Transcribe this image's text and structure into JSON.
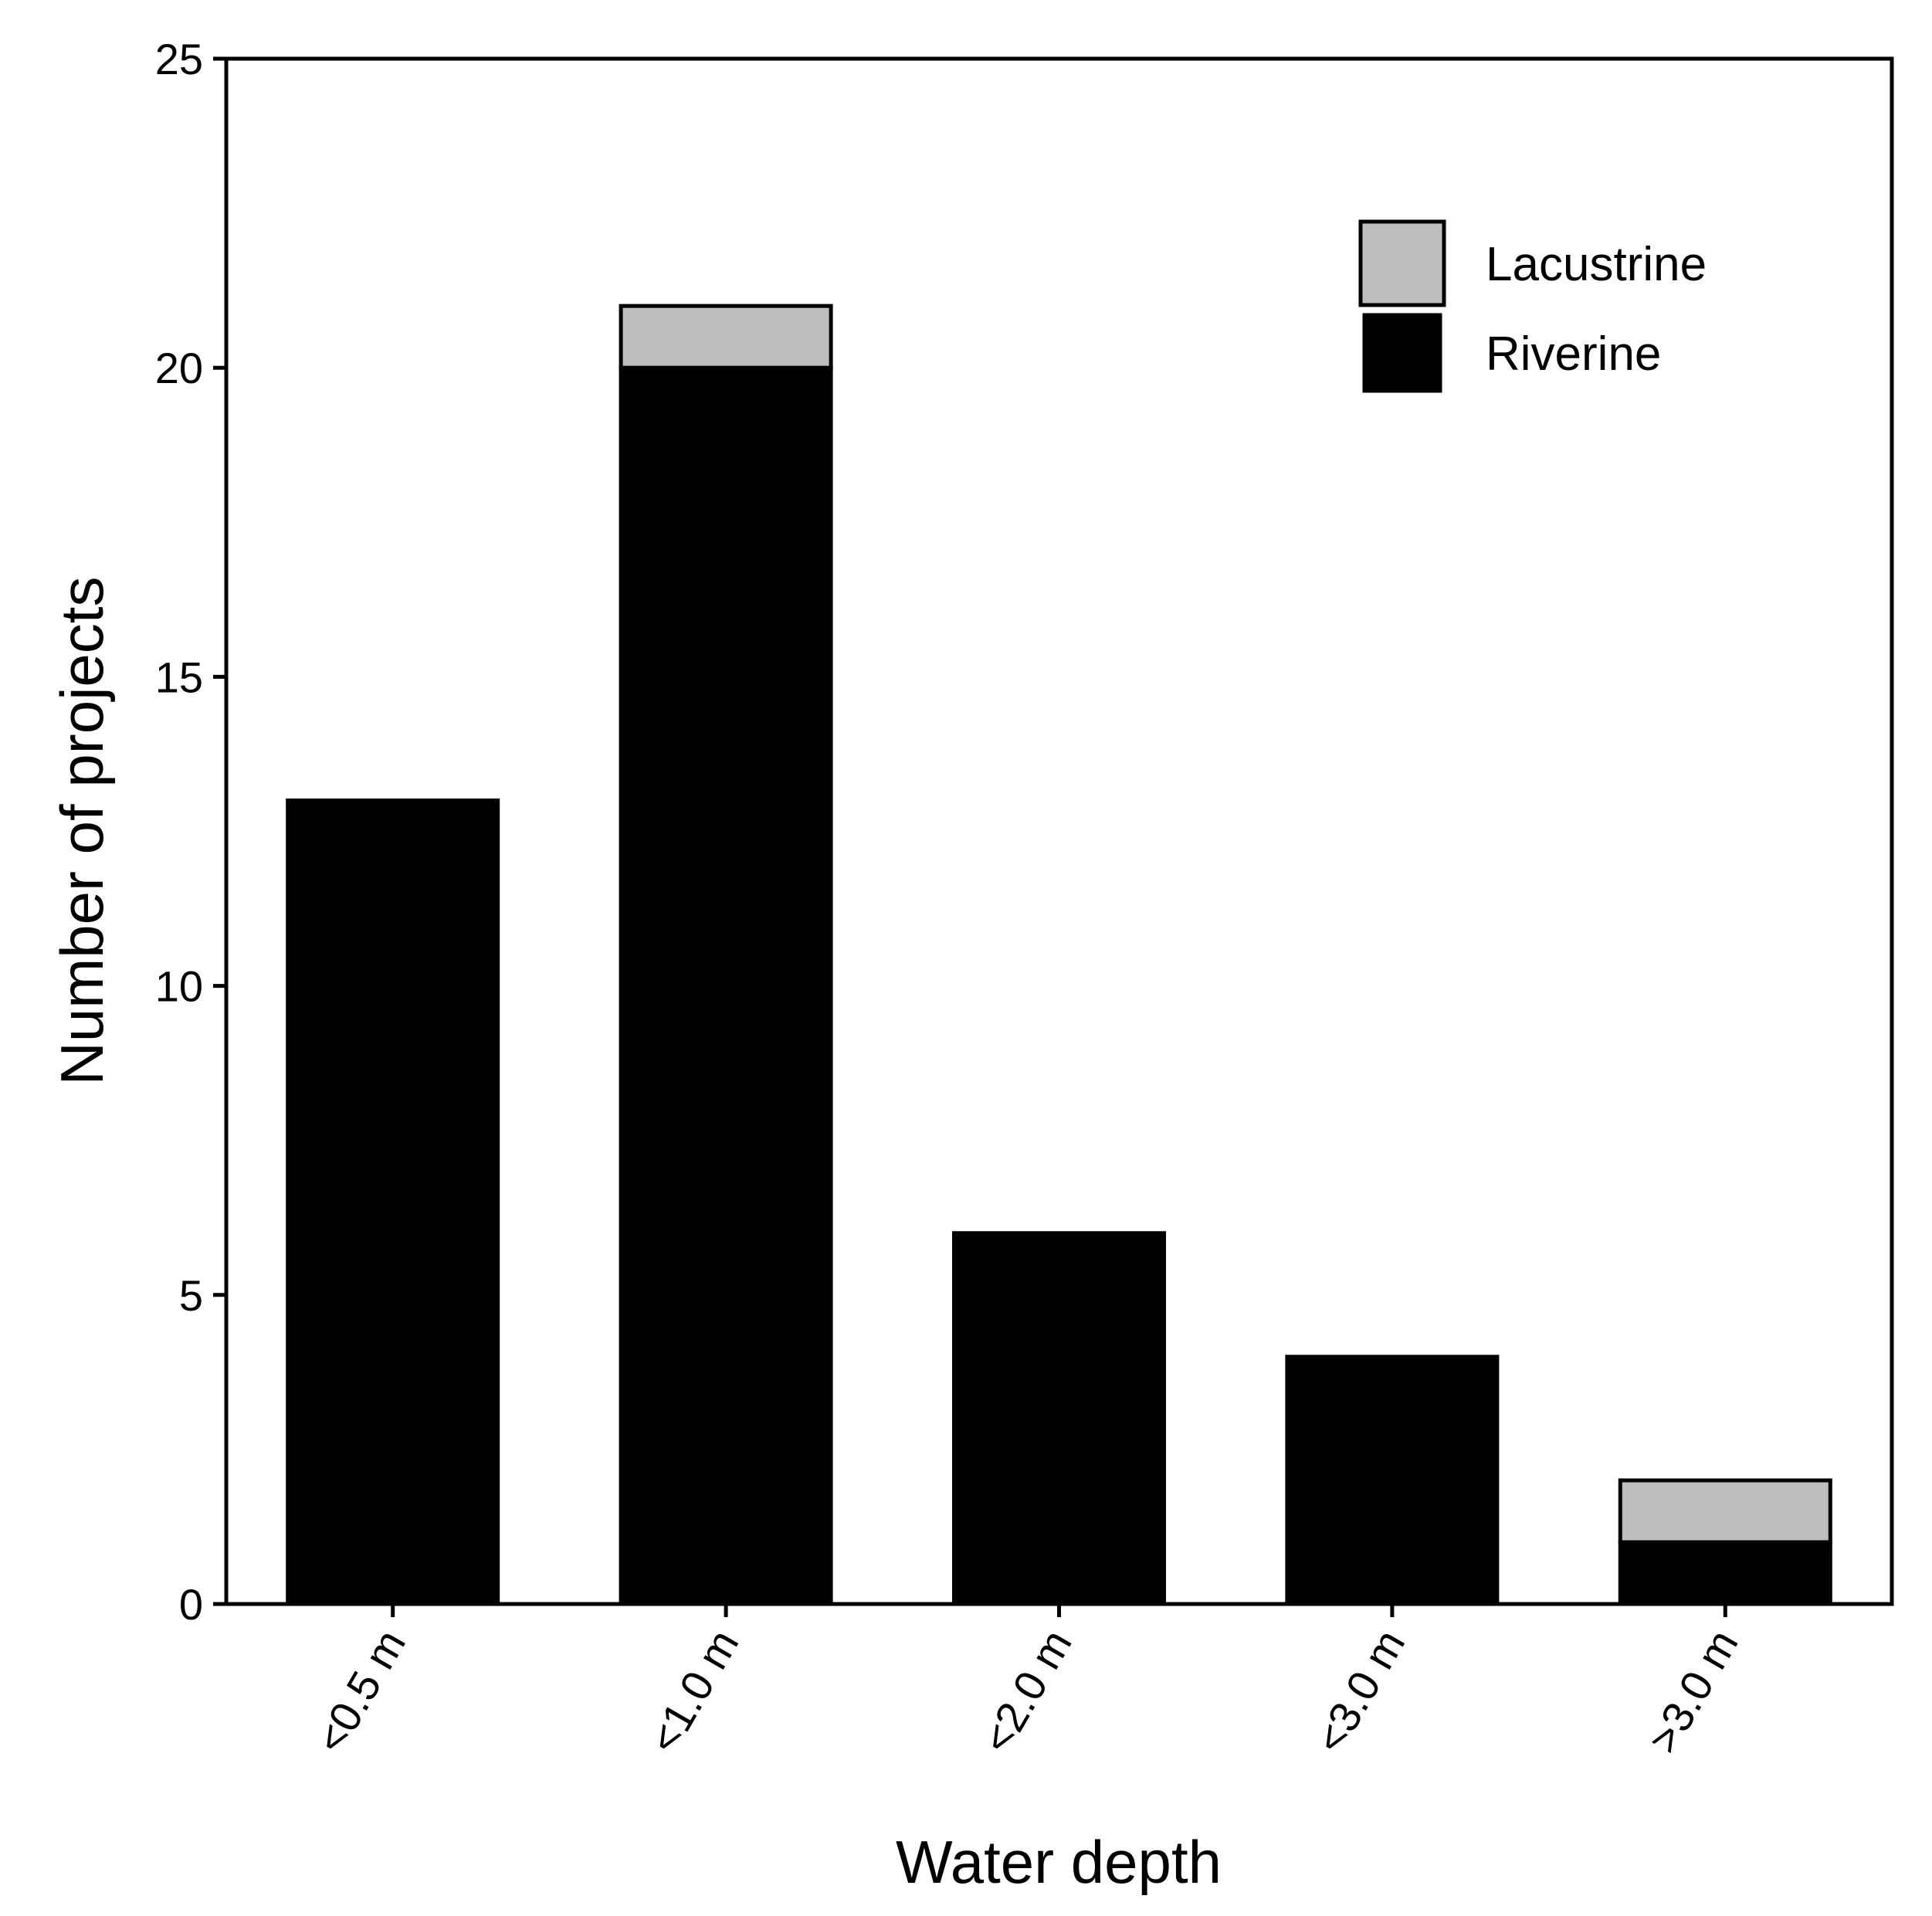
{
  "chart_data": {
    "type": "bar",
    "stacked": true,
    "title": "",
    "xlabel": "Water depth",
    "ylabel": "Number of projects",
    "categories": [
      "<0.5 m",
      "<1.0 m",
      "<2.0 m",
      "<3.0 m",
      ">3.0 m"
    ],
    "series": [
      {
        "name": "Riverine",
        "values": [
          13,
          20,
          6,
          4,
          1
        ],
        "color": "#000000"
      },
      {
        "name": "Lacustrine",
        "values": [
          0,
          1,
          0,
          0,
          1
        ],
        "color": "#bebebe"
      }
    ],
    "ylim": [
      0,
      25
    ],
    "yticks": [
      "0",
      "5",
      "10",
      "15",
      "20",
      "25"
    ],
    "legend": {
      "position": "top-right",
      "entries": [
        {
          "label": "Lacustrine",
          "color": "#bebebe"
        },
        {
          "label": "Riverine",
          "color": "#000000"
        }
      ]
    },
    "grid": false
  }
}
